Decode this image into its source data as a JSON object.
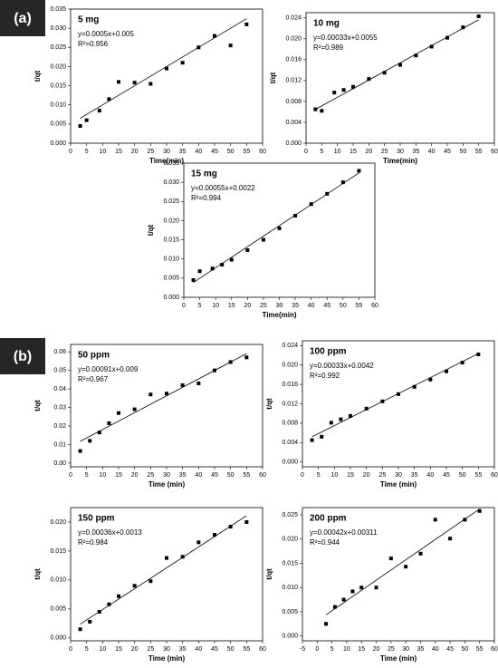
{
  "panel_labels": [
    "(a)",
    "(b)"
  ],
  "chart_data": [
    {
      "type": "scatter",
      "title": "5 mg",
      "equation": "y=0.0005x+0.005",
      "r_squared": "R²=0.956",
      "fit_slope": 0.0005,
      "fit_intercept": 0.005,
      "x_label": "Time(min)",
      "y_label": "t/qt",
      "color": "#000000",
      "x": [
        3,
        5,
        9,
        12,
        15,
        20,
        25,
        30,
        35,
        40,
        45,
        50,
        55
      ],
      "values": [
        0.0045,
        0.006,
        0.0085,
        0.0115,
        0.016,
        0.0158,
        0.0155,
        0.0195,
        0.021,
        0.025,
        0.028,
        0.0255,
        0.031
      ],
      "xlim": [
        0,
        60
      ],
      "xticks": [
        0,
        5,
        10,
        15,
        20,
        25,
        30,
        35,
        40,
        45,
        50,
        55,
        60
      ],
      "ylim": [
        0,
        0.035
      ],
      "yticks": [
        {
          "value": 0,
          "label": "0.000"
        },
        {
          "value": 0.005,
          "label": "0.005"
        },
        {
          "value": 0.01,
          "label": "0.010"
        },
        {
          "value": 0.015,
          "label": "0.015"
        },
        {
          "value": 0.02,
          "label": "0.020"
        },
        {
          "value": 0.025,
          "label": "0.025"
        },
        {
          "value": 0.03,
          "label": "0.030"
        },
        {
          "value": 0.035,
          "label": "0.035"
        }
      ]
    },
    {
      "type": "scatter",
      "title": "10 mg",
      "equation": "y=0.00033x+0.0055",
      "r_squared": "R²=0.989",
      "fit_slope": 0.00033,
      "fit_intercept": 0.0055,
      "x_label": "Time(min)",
      "y_label": "t/qt",
      "color": "#000000",
      "x": [
        3,
        5,
        9,
        12,
        15,
        20,
        25,
        30,
        35,
        40,
        45,
        50,
        55
      ],
      "values": [
        0.0065,
        0.0062,
        0.0097,
        0.0102,
        0.0108,
        0.0123,
        0.0135,
        0.015,
        0.0168,
        0.0185,
        0.0202,
        0.0222,
        0.0243
      ],
      "xlim": [
        0,
        60
      ],
      "xticks": [
        0,
        5,
        10,
        15,
        20,
        25,
        30,
        35,
        40,
        45,
        50,
        55,
        60
      ],
      "ylim": [
        0,
        0.025
      ],
      "yticks": [
        {
          "value": 0,
          "label": "0.000"
        },
        {
          "value": 0.004,
          "label": "0.004"
        },
        {
          "value": 0.008,
          "label": "0.008"
        },
        {
          "value": 0.012,
          "label": "0.012"
        },
        {
          "value": 0.016,
          "label": "0.016"
        },
        {
          "value": 0.02,
          "label": "0.020"
        },
        {
          "value": 0.024,
          "label": "0.024"
        }
      ]
    },
    {
      "type": "scatter",
      "title": "15 mg",
      "equation": "y=0.00055x+0.0022",
      "r_squared": "R²=0.994",
      "fit_slope": 0.00055,
      "fit_intercept": 0.0022,
      "x_label": "Time(min)",
      "y_label": "t/qt",
      "color": "#000000",
      "x": [
        3,
        5,
        9,
        12,
        15,
        20,
        25,
        30,
        35,
        40,
        45,
        50,
        55
      ],
      "values": [
        0.0045,
        0.0068,
        0.0075,
        0.0085,
        0.0098,
        0.0123,
        0.015,
        0.018,
        0.0213,
        0.0243,
        0.027,
        0.03,
        0.033
      ],
      "xlim": [
        0,
        60
      ],
      "xticks": [
        0,
        5,
        10,
        15,
        20,
        25,
        30,
        35,
        40,
        45,
        50,
        55,
        60
      ],
      "ylim": [
        0,
        0.035
      ],
      "yticks": [
        {
          "value": 0,
          "label": "0.000"
        },
        {
          "value": 0.005,
          "label": "0.005"
        },
        {
          "value": 0.01,
          "label": "0.010"
        },
        {
          "value": 0.015,
          "label": "0.015"
        },
        {
          "value": 0.02,
          "label": "0.020"
        },
        {
          "value": 0.025,
          "label": "0.025"
        },
        {
          "value": 0.03,
          "label": "0.030"
        },
        {
          "value": 0.035,
          "label": "0.035"
        }
      ]
    },
    {
      "type": "scatter",
      "title": "50 ppm",
      "equation": "y=0.00091x+0.009",
      "r_squared": "R²=0.967",
      "fit_slope": 0.00091,
      "fit_intercept": 0.009,
      "x_label": "Time (min)",
      "y_label": "t/qt",
      "color": "#000000",
      "x": [
        3,
        6,
        9,
        12,
        15,
        20,
        25,
        30,
        35,
        40,
        45,
        50,
        55
      ],
      "values": [
        0.0065,
        0.012,
        0.0165,
        0.0215,
        0.027,
        0.029,
        0.037,
        0.0375,
        0.042,
        0.043,
        0.05,
        0.0545,
        0.057
      ],
      "xlim": [
        0,
        60
      ],
      "xticks": [
        0,
        5,
        10,
        15,
        20,
        25,
        30,
        35,
        40,
        45,
        50,
        55,
        60
      ],
      "ylim": [
        -0.002,
        0.064
      ],
      "yticks": [
        {
          "value": 0,
          "label": "0.00"
        },
        {
          "value": 0.01,
          "label": "0.01"
        },
        {
          "value": 0.02,
          "label": "0.02"
        },
        {
          "value": 0.03,
          "label": "0.03"
        },
        {
          "value": 0.04,
          "label": "0.04"
        },
        {
          "value": 0.05,
          "label": "0.05"
        },
        {
          "value": 0.06,
          "label": "0.06"
        }
      ]
    },
    {
      "type": "scatter",
      "title": "100 ppm",
      "equation": "y=0.00033x+0.0042",
      "r_squared": "R²=0.992",
      "fit_slope": 0.00033,
      "fit_intercept": 0.0042,
      "x_label": "Time (min)",
      "y_label": "t/qt",
      "color": "#000000",
      "x": [
        3,
        6,
        9,
        12,
        15,
        20,
        25,
        30,
        35,
        40,
        45,
        50,
        55
      ],
      "values": [
        0.0045,
        0.0052,
        0.0081,
        0.0088,
        0.0095,
        0.011,
        0.0125,
        0.014,
        0.0155,
        0.017,
        0.0187,
        0.0205,
        0.0222
      ],
      "xlim": [
        0,
        60
      ],
      "xticks": [
        0,
        5,
        10,
        15,
        20,
        25,
        30,
        35,
        40,
        45,
        50,
        55,
        60
      ],
      "ylim": [
        -0.001,
        0.025
      ],
      "yticks": [
        {
          "value": 0,
          "label": "0.000"
        },
        {
          "value": 0.004,
          "label": "0.004"
        },
        {
          "value": 0.008,
          "label": "0.008"
        },
        {
          "value": 0.012,
          "label": "0.012"
        },
        {
          "value": 0.016,
          "label": "0.016"
        },
        {
          "value": 0.02,
          "label": "0.020"
        },
        {
          "value": 0.024,
          "label": "0.024"
        }
      ]
    },
    {
      "type": "scatter",
      "title": "150 ppm",
      "equation": "y=0.00036x+0.0013",
      "r_squared": "R²=0.984",
      "fit_slope": 0.00036,
      "fit_intercept": 0.0013,
      "x_label": "Time (min)",
      "y_label": "t/qt",
      "color": "#000000",
      "x": [
        3,
        6,
        9,
        12,
        15,
        20,
        25,
        30,
        35,
        40,
        45,
        50,
        55
      ],
      "values": [
        0.0015,
        0.0028,
        0.0045,
        0.0058,
        0.0072,
        0.009,
        0.0098,
        0.0138,
        0.014,
        0.0165,
        0.0178,
        0.0192,
        0.02
      ],
      "xlim": [
        0,
        60
      ],
      "xticks": [
        0,
        5,
        10,
        15,
        20,
        25,
        30,
        35,
        40,
        45,
        50,
        55,
        60
      ],
      "ylim": [
        -0.0005,
        0.0225
      ],
      "yticks": [
        {
          "value": 0,
          "label": "0.000"
        },
        {
          "value": 0.005,
          "label": "0.005"
        },
        {
          "value": 0.01,
          "label": "0.010"
        },
        {
          "value": 0.015,
          "label": "0.015"
        },
        {
          "value": 0.02,
          "label": "0.020"
        }
      ]
    },
    {
      "type": "scatter",
      "title": "200 ppm",
      "equation": "y=0.00042x+0.00311",
      "r_squared": "R²=0.944",
      "fit_slope": 0.00042,
      "fit_intercept": 0.00311,
      "x_label": "Time (min)",
      "y_label": "t/qt",
      "color": "#000000",
      "x": [
        3,
        6,
        9,
        12,
        15,
        20,
        25,
        30,
        35,
        40,
        45,
        50,
        55
      ],
      "values": [
        0.0025,
        0.006,
        0.0075,
        0.0092,
        0.01,
        0.01,
        0.016,
        0.0143,
        0.017,
        0.024,
        0.0201,
        0.024,
        0.0258
      ],
      "xlim": [
        -5,
        60
      ],
      "xticks": [
        -5,
        0,
        5,
        10,
        15,
        20,
        25,
        30,
        35,
        40,
        45,
        50,
        55,
        60
      ],
      "ylim": [
        -0.001,
        0.0265
      ],
      "yticks": [
        {
          "value": 0,
          "label": "0.000"
        },
        {
          "value": 0.005,
          "label": "0.005"
        },
        {
          "value": 0.01,
          "label": "0.010"
        },
        {
          "value": 0.015,
          "label": "0.015"
        },
        {
          "value": 0.02,
          "label": "0.020"
        },
        {
          "value": 0.025,
          "label": "0.025"
        }
      ]
    }
  ]
}
